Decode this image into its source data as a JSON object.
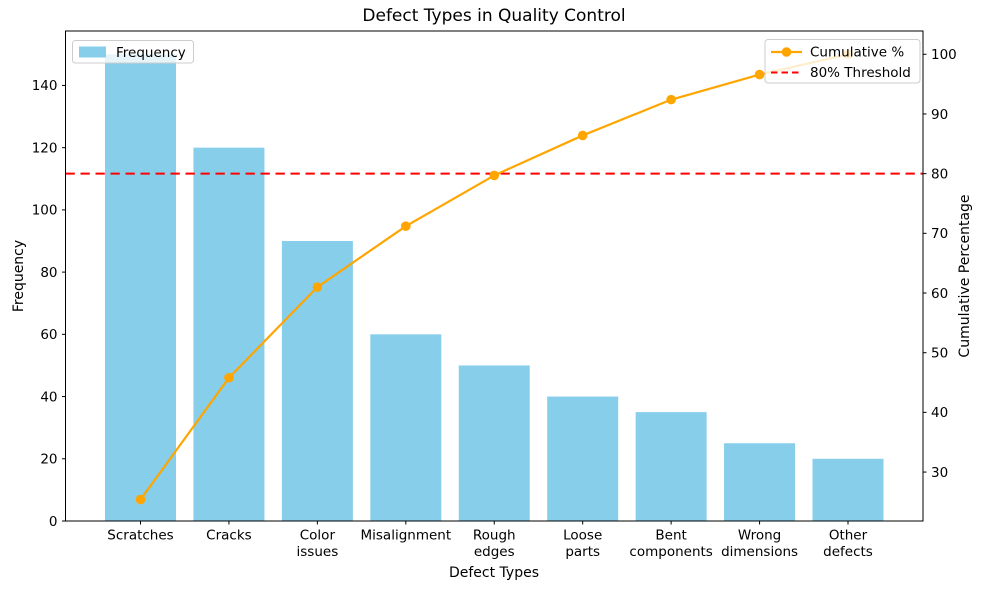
{
  "chart_data": {
    "type": "bar",
    "title": "Defect Types in Quality Control",
    "xlabel": "Defect Types",
    "ylabel_left": "Frequency",
    "ylabel_right": "Cumulative Percentage",
    "categories": [
      "Scratches",
      "Cracks",
      "Color\nissues",
      "Misalignment",
      "Rough\nedges",
      "Loose\nparts",
      "Bent\ncomponents",
      "Wrong\ndimensions",
      "Other\ndefects"
    ],
    "series": [
      {
        "name": "Frequency",
        "kind": "bar",
        "axis": "left",
        "color": "#87CEEB",
        "values": [
          150,
          120,
          90,
          60,
          50,
          40,
          35,
          25,
          20
        ]
      },
      {
        "name": "Cumulative %",
        "kind": "line",
        "axis": "right",
        "color": "#FFA500",
        "marker": "circle",
        "values": [
          25.4,
          45.8,
          61.0,
          71.2,
          79.7,
          86.4,
          92.4,
          96.6,
          100.0
        ]
      }
    ],
    "threshold": {
      "label": "80% Threshold",
      "value": 80,
      "axis": "right",
      "color": "#FF0000",
      "style": "dashed"
    },
    "yticks_left": [
      0,
      20,
      40,
      60,
      80,
      100,
      120,
      140
    ],
    "yticks_right": [
      30,
      40,
      50,
      60,
      70,
      80,
      90,
      100
    ],
    "ylim_left": [
      0,
      157.5
    ],
    "ylim_right": [
      21.8,
      103.9
    ],
    "grid": false,
    "legend_left_position": "upper left",
    "legend_right_position": "upper right",
    "text_color": "#000000",
    "spine_color": "#000000",
    "background_color": "#ffffff"
  }
}
